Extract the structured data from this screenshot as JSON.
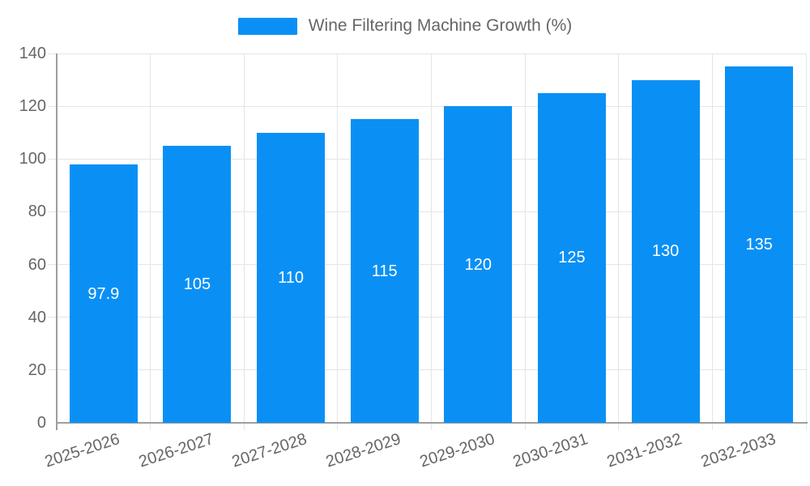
{
  "chart_data": {
    "type": "bar",
    "title": "",
    "categories": [
      "2025-2026",
      "2026-2027",
      "2027-2028",
      "2028-2029",
      "2029-2030",
      "2030-2031",
      "2031-2032",
      "2032-2033"
    ],
    "series": [
      {
        "name": "Wine Filtering Machine Growth (%)",
        "values": [
          97.9,
          105,
          110,
          115,
          120,
          125,
          130,
          135
        ],
        "value_labels": [
          "97.9",
          "105",
          "110",
          "115",
          "120",
          "125",
          "130",
          "135"
        ],
        "color": "#0a90f5"
      }
    ],
    "ylim": [
      0,
      140
    ],
    "yticks": [
      0,
      20,
      40,
      60,
      80,
      100,
      120,
      140
    ],
    "xlabel": "",
    "ylabel": "",
    "grid": true,
    "legend_position": "top-center",
    "value_labels_shown": true,
    "value_label_position": "center-of-bar",
    "x_label_rotation_deg": -18,
    "colors": {
      "bar": "#0a90f5",
      "grid": "#e5e5e5",
      "axis": "#9e9e9e",
      "tick_label": "#666666",
      "legend_text": "#666666",
      "value_label": "#ffffff",
      "background": "#ffffff"
    }
  }
}
